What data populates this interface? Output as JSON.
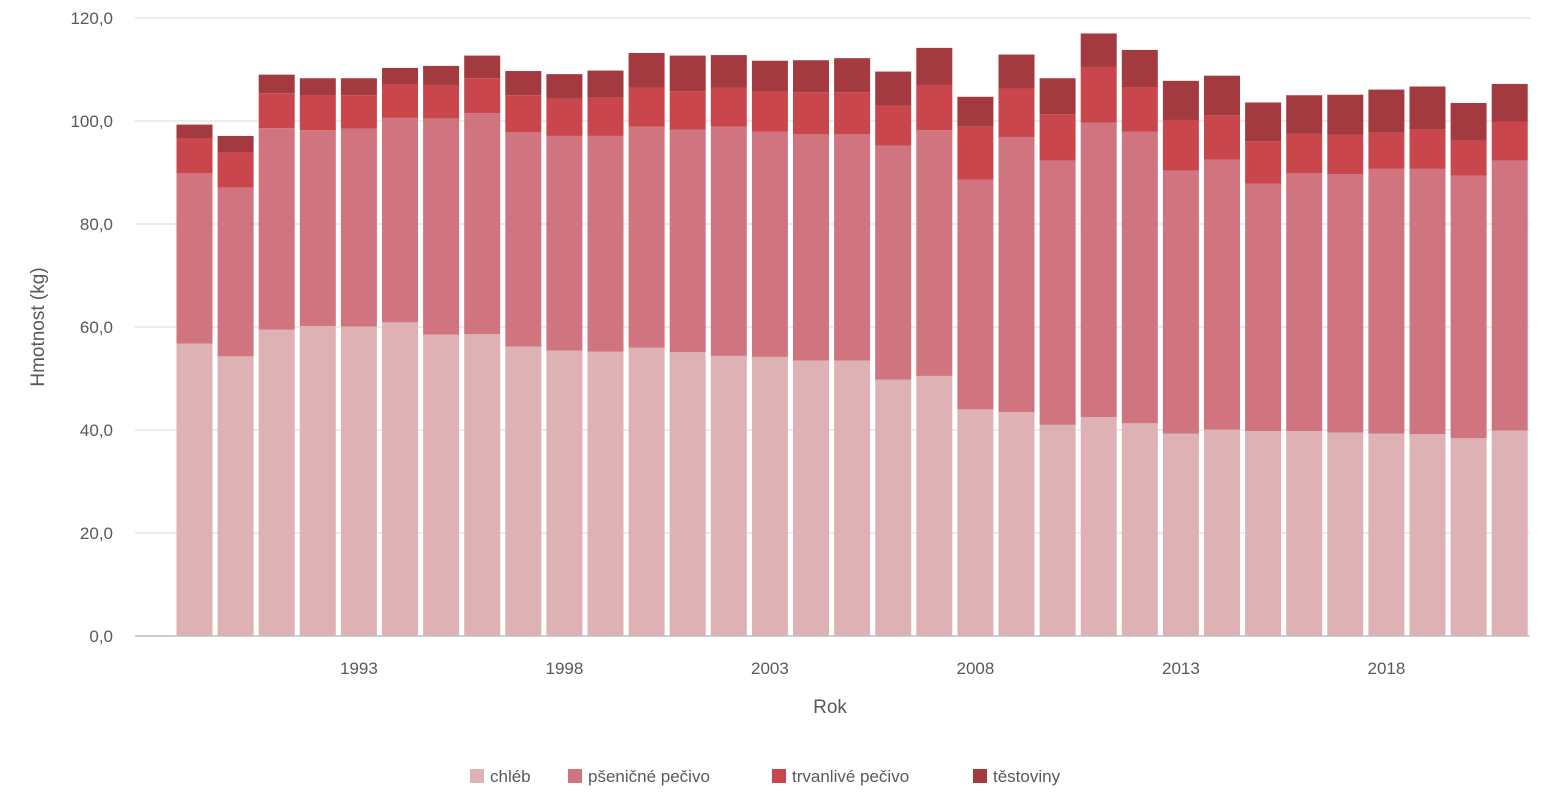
{
  "chart_data": {
    "type": "bar",
    "stacked": true,
    "title": "",
    "xlabel": "Rok",
    "ylabel": "Hmotnost (kg)",
    "ylim": [
      0,
      120
    ],
    "yticks": [
      "0,0",
      "20,0",
      "40,0",
      "60,0",
      "80,0",
      "100,0",
      "120,0"
    ],
    "ytick_values": [
      0,
      20,
      40,
      60,
      80,
      100,
      120
    ],
    "grid": true,
    "legend_position": "bottom",
    "categories": [
      1989,
      1990,
      1991,
      1992,
      1993,
      1994,
      1995,
      1996,
      1997,
      1998,
      1999,
      2000,
      2001,
      2002,
      2003,
      2004,
      2005,
      2006,
      2007,
      2008,
      2009,
      2010,
      2011,
      2012,
      2013,
      2014,
      2015,
      2016,
      2017,
      2018,
      2019,
      2020,
      2021
    ],
    "xtick_labels": [
      {
        "category": 1993,
        "label": "1993"
      },
      {
        "category": 1998,
        "label": "1998"
      },
      {
        "category": 2003,
        "label": "2003"
      },
      {
        "category": 2008,
        "label": "2008"
      },
      {
        "category": 2013,
        "label": "2013"
      },
      {
        "category": 2018,
        "label": "2018"
      }
    ],
    "series": [
      {
        "name": "chléb",
        "color": "#deb2b4",
        "values": [
          56.8,
          54.3,
          59.5,
          60.2,
          60.1,
          60.9,
          58.5,
          58.6,
          56.2,
          55.4,
          55.2,
          56.0,
          55.1,
          54.4,
          54.2,
          53.5,
          53.5,
          49.8,
          50.5,
          44.0,
          43.5,
          41.0,
          42.5,
          41.3,
          39.3,
          40.1,
          39.8,
          39.8,
          39.5,
          39.3,
          39.2,
          38.4,
          39.9
        ]
      },
      {
        "name": "pšeničné pečivo",
        "color": "#d0757f",
        "values": [
          33.1,
          32.8,
          39.1,
          38.0,
          38.4,
          39.7,
          42.0,
          42.9,
          41.6,
          41.7,
          41.9,
          42.9,
          43.2,
          44.5,
          43.7,
          43.9,
          43.9,
          45.4,
          47.7,
          44.6,
          53.4,
          51.3,
          57.2,
          56.6,
          51.1,
          52.4,
          48.0,
          50.1,
          50.2,
          51.4,
          51.5,
          51.0,
          52.4
        ]
      },
      {
        "name": "trvanlivé pečivo",
        "color": "#c9474c",
        "values": [
          6.8,
          6.8,
          6.8,
          6.7,
          6.5,
          6.5,
          6.5,
          6.8,
          7.2,
          7.2,
          7.4,
          7.6,
          7.5,
          7.6,
          7.8,
          8.2,
          8.2,
          7.8,
          8.8,
          10.3,
          9.4,
          9.0,
          10.8,
          8.7,
          9.8,
          8.6,
          8.3,
          7.6,
          7.6,
          7.0,
          7.6,
          6.8,
          7.6
        ]
      },
      {
        "name": "těstoviny",
        "color": "#a33a3f",
        "values": [
          2.6,
          3.2,
          3.6,
          3.4,
          3.3,
          3.2,
          3.7,
          4.4,
          4.7,
          4.8,
          5.3,
          6.7,
          6.9,
          6.3,
          6.0,
          6.2,
          6.6,
          6.6,
          7.2,
          5.8,
          6.6,
          7.0,
          6.5,
          7.2,
          7.6,
          7.7,
          7.5,
          7.5,
          7.8,
          8.4,
          8.4,
          7.3,
          7.3
        ]
      }
    ]
  }
}
